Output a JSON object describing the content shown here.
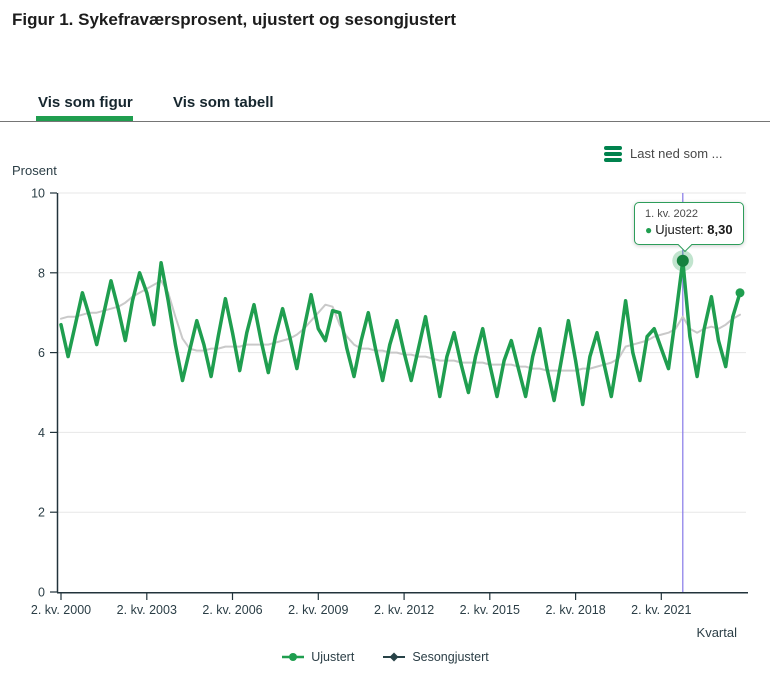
{
  "figure": {
    "title": "Figur 1. Sykefraværsprosent, ujustert og sesongjustert"
  },
  "tabs": [
    {
      "label": "Vis som figur",
      "active": true
    },
    {
      "label": "Vis som tabell",
      "active": false
    }
  ],
  "download": {
    "label": "Last ned som ...",
    "icon": "hamburger-icon"
  },
  "tooltip": {
    "period": "1. kv. 2022",
    "bullet": "●",
    "series_label": "Ujustert:",
    "value": "8,30"
  },
  "colors": {
    "accent_green": "#1f9e4f",
    "dark_green_ui": "#00824d",
    "series_ujustert": "#1f9e4f",
    "series_sesongjustert_line": "#c9c9c9",
    "series_sesongjustert_legend": "#274247",
    "crosshair": "#8678e8",
    "highlight_marker_core": "#15813e",
    "highlight_marker_halo": "rgba(31,158,79,0.28)",
    "gridline": "#e7e7e7",
    "axis": "#22333b"
  },
  "chart_data": {
    "type": "line",
    "title": "Sykefraværsprosent, ujustert og sesongjustert",
    "ylabel": "Prosent",
    "xlabel": "Kvartal",
    "ylim": [
      0,
      10
    ],
    "grid": "horizontal",
    "legend_position": "bottom-center",
    "y_ticks": [
      0,
      2,
      4,
      6,
      8,
      10
    ],
    "x_frequency": "quarterly",
    "x_first": "2. kv. 2000",
    "x_last": "1. kv. 2024",
    "x_tick_labels": [
      "2. kv. 2000",
      "2. kv. 2003",
      "2. kv. 2006",
      "2. kv. 2009",
      "2. kv. 2012",
      "2. kv. 2015",
      "2. kv. 2018",
      "2. kv. 2021"
    ],
    "x_tick_quarter_index": [
      0,
      12,
      24,
      36,
      48,
      60,
      72,
      84
    ],
    "highlight": {
      "series": "Ujustert",
      "label": "1. kv. 2022",
      "quarter_index": 87,
      "value": 8.3,
      "value_label": "8,30"
    },
    "legend": [
      {
        "label": "Ujustert",
        "marker": "circle",
        "color": "#1f9e4f"
      },
      {
        "label": "Sesongjustert",
        "marker": "diamond",
        "color": "#274247"
      }
    ],
    "series": [
      {
        "name": "Ujustert",
        "color": "#1f9e4f",
        "values": [
          6.7,
          5.9,
          6.7,
          7.5,
          6.9,
          6.2,
          7.0,
          7.8,
          7.1,
          6.3,
          7.3,
          8.0,
          7.5,
          6.7,
          8.25,
          7.3,
          6.2,
          5.3,
          6.05,
          6.8,
          6.2,
          5.4,
          6.4,
          7.35,
          6.5,
          5.55,
          6.5,
          7.2,
          6.3,
          5.5,
          6.4,
          7.1,
          6.4,
          5.6,
          6.6,
          7.45,
          6.6,
          6.3,
          7.05,
          7.0,
          6.1,
          5.4,
          6.3,
          7.0,
          6.1,
          5.3,
          6.2,
          6.8,
          6.0,
          5.3,
          6.1,
          6.9,
          5.9,
          4.9,
          5.9,
          6.5,
          5.7,
          5.0,
          5.9,
          6.6,
          5.7,
          4.9,
          5.8,
          6.3,
          5.6,
          4.9,
          5.9,
          6.6,
          5.6,
          4.8,
          5.8,
          6.8,
          5.8,
          4.7,
          5.9,
          6.5,
          5.7,
          4.9,
          6.0,
          7.3,
          6.0,
          5.3,
          6.4,
          6.6,
          6.1,
          5.6,
          6.9,
          8.3,
          6.4,
          5.4,
          6.6,
          7.4,
          6.3,
          5.65,
          6.9,
          7.5
        ]
      },
      {
        "name": "Sesongjustert",
        "color": "#c9c9c9",
        "legend_color": "#274247",
        "values": [
          6.85,
          6.9,
          6.9,
          6.95,
          7.0,
          7.0,
          7.05,
          7.1,
          7.15,
          7.25,
          7.4,
          7.5,
          7.6,
          7.7,
          7.8,
          7.5,
          6.9,
          6.35,
          6.1,
          6.05,
          6.05,
          6.1,
          6.1,
          6.15,
          6.15,
          6.15,
          6.2,
          6.2,
          6.2,
          6.2,
          6.25,
          6.3,
          6.35,
          6.45,
          6.6,
          6.8,
          7.0,
          7.2,
          7.15,
          6.7,
          6.4,
          6.2,
          6.1,
          6.1,
          6.05,
          6.05,
          6.0,
          6.0,
          5.95,
          5.95,
          5.9,
          5.9,
          5.85,
          5.8,
          5.8,
          5.8,
          5.75,
          5.75,
          5.75,
          5.75,
          5.7,
          5.7,
          5.7,
          5.7,
          5.65,
          5.65,
          5.6,
          5.6,
          5.55,
          5.55,
          5.55,
          5.55,
          5.55,
          5.6,
          5.6,
          5.65,
          5.7,
          5.75,
          5.85,
          6.15,
          6.2,
          6.25,
          6.3,
          6.4,
          6.45,
          6.5,
          6.6,
          6.9,
          6.6,
          6.5,
          6.6,
          6.65,
          6.6,
          6.7,
          6.85,
          6.95
        ]
      }
    ]
  }
}
